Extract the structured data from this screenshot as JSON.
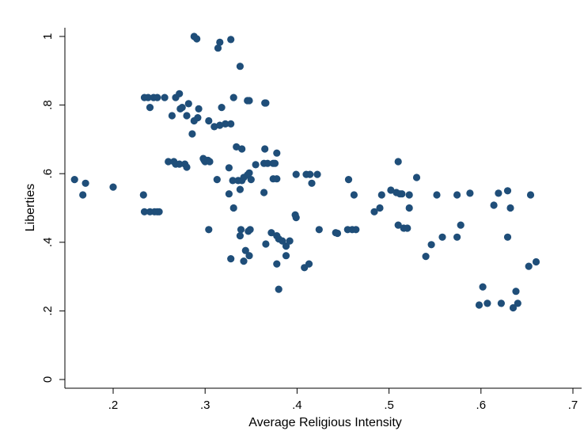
{
  "chart_data": {
    "type": "scatter",
    "xlabel": "Average Religious Intensity",
    "ylabel": "Liberties",
    "xlim": [
      0.15,
      0.71
    ],
    "ylim": [
      -0.02,
      1.02
    ],
    "xticks": [
      {
        "value": 0.2,
        "label": ".2"
      },
      {
        "value": 0.3,
        "label": ".3"
      },
      {
        "value": 0.4,
        "label": ".4"
      },
      {
        "value": 0.5,
        "label": ".5"
      },
      {
        "value": 0.6,
        "label": ".6"
      },
      {
        "value": 0.7,
        "label": ".7"
      }
    ],
    "yticks": [
      {
        "value": 0,
        "label": "0"
      },
      {
        "value": 0.2,
        "label": ".2"
      },
      {
        "value": 0.4,
        "label": ".4"
      },
      {
        "value": 0.6,
        "label": ".6"
      },
      {
        "value": 0.8,
        "label": ".8"
      },
      {
        "value": 1,
        "label": "1"
      }
    ],
    "grid": false,
    "marker_color": "#1f4e79",
    "points": [
      [
        0.158,
        0.583
      ],
      [
        0.167,
        0.538
      ],
      [
        0.17,
        0.572
      ],
      [
        0.2,
        0.561
      ],
      [
        0.233,
        0.538
      ],
      [
        0.234,
        0.489
      ],
      [
        0.24,
        0.489
      ],
      [
        0.245,
        0.489
      ],
      [
        0.248,
        0.489
      ],
      [
        0.25,
        0.489
      ],
      [
        0.234,
        0.822
      ],
      [
        0.238,
        0.822
      ],
      [
        0.244,
        0.822
      ],
      [
        0.248,
        0.822
      ],
      [
        0.256,
        0.822
      ],
      [
        0.24,
        0.793
      ],
      [
        0.268,
        0.822
      ],
      [
        0.272,
        0.833
      ],
      [
        0.273,
        0.789
      ],
      [
        0.275,
        0.793
      ],
      [
        0.282,
        0.804
      ],
      [
        0.264,
        0.769
      ],
      [
        0.28,
        0.769
      ],
      [
        0.288,
        0.754
      ],
      [
        0.292,
        0.763
      ],
      [
        0.293,
        0.789
      ],
      [
        0.286,
        0.716
      ],
      [
        0.26,
        0.635
      ],
      [
        0.266,
        0.635
      ],
      [
        0.268,
        0.628
      ],
      [
        0.272,
        0.628
      ],
      [
        0.278,
        0.628
      ],
      [
        0.28,
        0.619
      ],
      [
        0.298,
        0.644
      ],
      [
        0.299,
        0.639
      ],
      [
        0.3,
        0.635
      ],
      [
        0.303,
        0.639
      ],
      [
        0.305,
        0.635
      ],
      [
        0.288,
        1.0
      ],
      [
        0.291,
        0.993
      ],
      [
        0.316,
        0.983
      ],
      [
        0.314,
        0.966
      ],
      [
        0.328,
        0.991
      ],
      [
        0.338,
        0.913
      ],
      [
        0.304,
        0.754
      ],
      [
        0.31,
        0.737
      ],
      [
        0.316,
        0.741
      ],
      [
        0.318,
        0.793
      ],
      [
        0.322,
        0.745
      ],
      [
        0.328,
        0.745
      ],
      [
        0.331,
        0.822
      ],
      [
        0.346,
        0.813
      ],
      [
        0.348,
        0.813
      ],
      [
        0.365,
        0.806
      ],
      [
        0.366,
        0.806
      ],
      [
        0.334,
        0.678
      ],
      [
        0.34,
        0.672
      ],
      [
        0.365,
        0.672
      ],
      [
        0.378,
        0.66
      ],
      [
        0.364,
        0.63
      ],
      [
        0.368,
        0.63
      ],
      [
        0.374,
        0.63
      ],
      [
        0.376,
        0.63
      ],
      [
        0.374,
        0.585
      ],
      [
        0.378,
        0.585
      ],
      [
        0.313,
        0.583
      ],
      [
        0.326,
        0.617
      ],
      [
        0.33,
        0.58
      ],
      [
        0.336,
        0.58
      ],
      [
        0.34,
        0.58
      ],
      [
        0.342,
        0.589
      ],
      [
        0.346,
        0.596
      ],
      [
        0.348,
        0.602
      ],
      [
        0.35,
        0.583
      ],
      [
        0.355,
        0.626
      ],
      [
        0.338,
        0.554
      ],
      [
        0.326,
        0.541
      ],
      [
        0.364,
        0.545
      ],
      [
        0.399,
        0.598
      ],
      [
        0.41,
        0.598
      ],
      [
        0.414,
        0.598
      ],
      [
        0.416,
        0.572
      ],
      [
        0.422,
        0.598
      ],
      [
        0.456,
        0.583
      ],
      [
        0.462,
        0.538
      ],
      [
        0.304,
        0.437
      ],
      [
        0.331,
        0.5
      ],
      [
        0.338,
        0.419
      ],
      [
        0.339,
        0.437
      ],
      [
        0.342,
        0.345
      ],
      [
        0.344,
        0.376
      ],
      [
        0.347,
        0.432
      ],
      [
        0.348,
        0.361
      ],
      [
        0.349,
        0.437
      ],
      [
        0.328,
        0.352
      ],
      [
        0.366,
        0.395
      ],
      [
        0.372,
        0.428
      ],
      [
        0.378,
        0.419
      ],
      [
        0.38,
        0.41
      ],
      [
        0.384,
        0.404
      ],
      [
        0.388,
        0.389
      ],
      [
        0.392,
        0.404
      ],
      [
        0.388,
        0.361
      ],
      [
        0.378,
        0.337
      ],
      [
        0.38,
        0.263
      ],
      [
        0.398,
        0.48
      ],
      [
        0.399,
        0.472
      ],
      [
        0.408,
        0.326
      ],
      [
        0.413,
        0.337
      ],
      [
        0.424,
        0.437
      ],
      [
        0.442,
        0.428
      ],
      [
        0.444,
        0.426
      ],
      [
        0.455,
        0.437
      ],
      [
        0.46,
        0.437
      ],
      [
        0.464,
        0.437
      ],
      [
        0.484,
        0.489
      ],
      [
        0.49,
        0.5
      ],
      [
        0.492,
        0.538
      ],
      [
        0.502,
        0.552
      ],
      [
        0.508,
        0.545
      ],
      [
        0.512,
        0.541
      ],
      [
        0.514,
        0.541
      ],
      [
        0.51,
        0.635
      ],
      [
        0.51,
        0.45
      ],
      [
        0.516,
        0.441
      ],
      [
        0.52,
        0.441
      ],
      [
        0.522,
        0.5
      ],
      [
        0.522,
        0.538
      ],
      [
        0.53,
        0.589
      ],
      [
        0.54,
        0.359
      ],
      [
        0.546,
        0.393
      ],
      [
        0.552,
        0.538
      ],
      [
        0.558,
        0.415
      ],
      [
        0.574,
        0.538
      ],
      [
        0.574,
        0.415
      ],
      [
        0.578,
        0.45
      ],
      [
        0.588,
        0.543
      ],
      [
        0.598,
        0.217
      ],
      [
        0.602,
        0.27
      ],
      [
        0.607,
        0.222
      ],
      [
        0.614,
        0.508
      ],
      [
        0.619,
        0.543
      ],
      [
        0.622,
        0.222
      ],
      [
        0.629,
        0.55
      ],
      [
        0.629,
        0.415
      ],
      [
        0.632,
        0.5
      ],
      [
        0.635,
        0.209
      ],
      [
        0.638,
        0.257
      ],
      [
        0.64,
        0.222
      ],
      [
        0.652,
        0.33
      ],
      [
        0.654,
        0.538
      ],
      [
        0.66,
        0.343
      ]
    ]
  }
}
